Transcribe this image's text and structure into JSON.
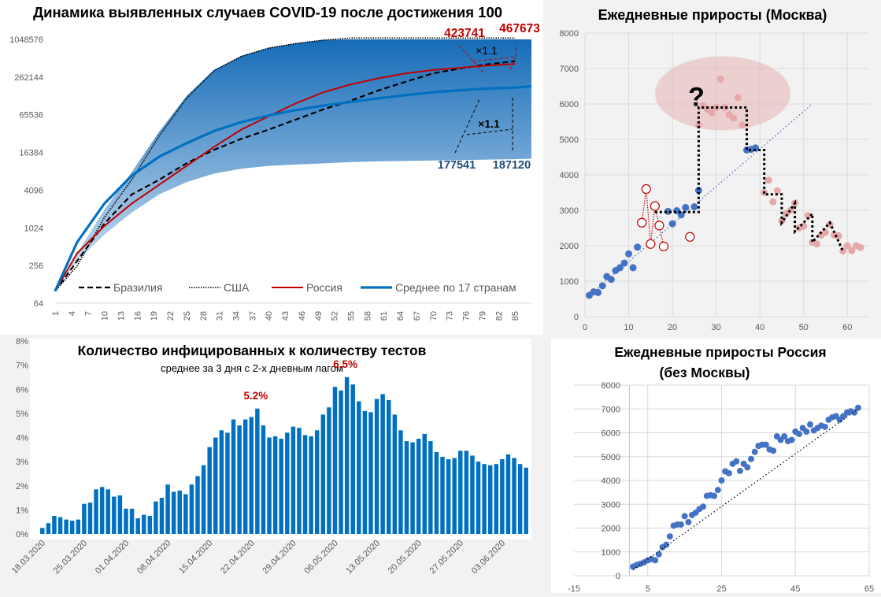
{
  "chart_data": [
    {
      "id": "growth",
      "type": "area",
      "title": "Динамика выявленных случаев COVID-19 после достижения 100",
      "xlabel": "",
      "ylabel": "",
      "yscale": "log2",
      "ylim": [
        64,
        1048576
      ],
      "yticks": [
        "64",
        "256",
        "1024",
        "4096",
        "16384",
        "65536",
        "262144",
        "1048576"
      ],
      "ytick_values": [
        64,
        256,
        1024,
        4096,
        16384,
        65536,
        262144,
        1048576
      ],
      "xticks": [
        "1",
        "4",
        "7",
        "10",
        "13",
        "16",
        "19",
        "22",
        "25",
        "28",
        "31",
        "34",
        "37",
        "40",
        "43",
        "46",
        "49",
        "52",
        "55",
        "58",
        "61",
        "64",
        "67",
        "70",
        "73",
        "76",
        "79",
        "82",
        "85"
      ],
      "xlim": [
        1,
        88
      ],
      "legend": "bottom",
      "series": [
        {
          "name": "Бразилия",
          "color": "#000000",
          "style": "dashed",
          "x": [
            1,
            5,
            10,
            15,
            20,
            25,
            30,
            35,
            40,
            45,
            50,
            55,
            60,
            65,
            70,
            75,
            80,
            85
          ],
          "y": [
            100,
            300,
            1200,
            3500,
            6000,
            11000,
            18000,
            27000,
            38000,
            55000,
            80000,
            110000,
            160000,
            220000,
            300000,
            360000,
            420000,
            470000
          ]
        },
        {
          "name": "США",
          "color": "#000000",
          "style": "dotted",
          "x": [
            1,
            5,
            10,
            15,
            20,
            25,
            30,
            35,
            40,
            45,
            50,
            55,
            60,
            65,
            70,
            75,
            80,
            85
          ],
          "y": [
            100,
            250,
            1500,
            6000,
            30000,
            120000,
            330000,
            560000,
            760000,
            900000,
            1020000,
            1140000,
            1260000,
            1370000,
            1480000,
            1590000,
            1700000,
            1800000
          ]
        },
        {
          "name": "Россия",
          "color": "#c00000",
          "style": "solid",
          "x": [
            1,
            5,
            10,
            15,
            20,
            25,
            30,
            35,
            40,
            45,
            50,
            55,
            60,
            65,
            70,
            75,
            80,
            85
          ],
          "y": [
            100,
            400,
            1100,
            2500,
            5000,
            10000,
            20000,
            38000,
            62000,
            100000,
            150000,
            200000,
            250000,
            300000,
            340000,
            370000,
            400000,
            423741
          ]
        },
        {
          "name": "Среднее по 17 странам",
          "color": "#0070c0",
          "style": "solid-thick",
          "x": [
            1,
            5,
            10,
            15,
            20,
            25,
            30,
            35,
            40,
            45,
            50,
            55,
            60,
            65,
            70,
            75,
            80,
            85,
            88
          ],
          "y": [
            100,
            600,
            2500,
            7000,
            14000,
            23000,
            36000,
            50000,
            64000,
            78000,
            92000,
            105000,
            120000,
            135000,
            150000,
            162000,
            172000,
            177541,
            187120
          ]
        }
      ],
      "band": {
        "x": [
          1,
          5,
          10,
          15,
          20,
          25,
          30,
          35,
          40,
          45,
          50,
          55,
          60,
          65,
          70,
          75,
          80,
          85,
          88
        ],
        "upper": [
          100,
          400,
          2000,
          8000,
          35000,
          130000,
          340000,
          570000,
          770000,
          910000,
          1030000,
          1150000,
          1270000,
          1380000,
          1490000,
          1600000,
          1710000,
          1810000,
          1900000
        ],
        "lower": [
          100,
          300,
          800,
          1800,
          3500,
          5500,
          7500,
          9000,
          10000,
          10500,
          11000,
          11500,
          11800,
          12000,
          12200,
          12400,
          12600,
          12800,
          13000
        ]
      },
      "annotations": [
        {
          "text": "423741",
          "color": "#c00000"
        },
        {
          "text": "467673",
          "color": "#c00000"
        },
        {
          "text": "×1.1",
          "color": "#000000"
        },
        {
          "text": "×1.1",
          "color": "#000000"
        },
        {
          "text": "177541",
          "color": "#1f4e79"
        },
        {
          "text": "187120",
          "color": "#1f4e79"
        }
      ]
    },
    {
      "id": "moscow",
      "type": "scatter",
      "title": "Ежедневные приросты (Москва)",
      "xlim": [
        0,
        65
      ],
      "ylim": [
        0,
        8000
      ],
      "xticks": [
        "0",
        "10",
        "20",
        "30",
        "40",
        "50",
        "60"
      ],
      "xtick_values": [
        0,
        10,
        20,
        30,
        40,
        50,
        60
      ],
      "yticks": [
        "0",
        "1000",
        "2000",
        "3000",
        "4000",
        "5000",
        "6000",
        "7000",
        "8000"
      ],
      "ytick_values": [
        0,
        1000,
        2000,
        3000,
        4000,
        5000,
        6000,
        7000,
        8000
      ],
      "grid": true,
      "annotation": "?",
      "series": [
        {
          "name": "blue",
          "color": "#4472c4",
          "points": [
            [
              1,
              600
            ],
            [
              2,
              700
            ],
            [
              3,
              680
            ],
            [
              4,
              870
            ],
            [
              5,
              1130
            ],
            [
              6,
              1050
            ],
            [
              7,
              1300
            ],
            [
              8,
              1380
            ],
            [
              9,
              1510
            ],
            [
              10,
              1770
            ],
            [
              11,
              1380
            ],
            [
              12,
              1960
            ],
            [
              19,
              2970
            ],
            [
              20,
              2620
            ],
            [
              21,
              2990
            ],
            [
              22,
              2870
            ],
            [
              23,
              3080
            ],
            [
              25,
              3100
            ],
            [
              26,
              3560
            ],
            [
              37,
              4700
            ],
            [
              38,
              4720
            ],
            [
              39,
              4760
            ]
          ]
        },
        {
          "name": "red-hollow",
          "color": "#c00000",
          "points": [
            [
              13,
              2650
            ],
            [
              14,
              3600
            ],
            [
              15,
              2050
            ],
            [
              16,
              3120
            ],
            [
              17,
              2570
            ],
            [
              18,
              1980
            ],
            [
              24,
              2250
            ]
          ]
        },
        {
          "name": "pink",
          "color": "#e6a8a8",
          "points": [
            [
              26,
              5400
            ],
            [
              27,
              5950
            ],
            [
              28,
              5850
            ],
            [
              29,
              5750
            ],
            [
              30,
              5900
            ],
            [
              31,
              6700
            ],
            [
              32,
              5900
            ],
            [
              33,
              5700
            ],
            [
              34,
              5600
            ],
            [
              35,
              6180
            ],
            [
              36,
              5400
            ],
            [
              41,
              3500
            ],
            [
              42,
              3850
            ],
            [
              43,
              3240
            ],
            [
              44,
              3550
            ],
            [
              45,
              2700
            ],
            [
              46,
              2900
            ],
            [
              47,
              3000
            ],
            [
              48,
              3200
            ],
            [
              49,
              2500
            ],
            [
              50,
              2550
            ],
            [
              51,
              2850
            ],
            [
              52,
              2100
            ],
            [
              53,
              2050
            ],
            [
              54,
              2300
            ],
            [
              55,
              2380
            ],
            [
              56,
              2600
            ],
            [
              57,
              2300
            ],
            [
              58,
              2280
            ],
            [
              59,
              1850
            ],
            [
              60,
              2000
            ],
            [
              61,
              1860
            ],
            [
              62,
              2000
            ],
            [
              63,
              1950
            ]
          ]
        }
      ],
      "trendline": {
        "x": [
          1,
          52
        ],
        "y": [
          600,
          6000
        ]
      },
      "red_connector_order": [
        [
          13,
          2650
        ],
        [
          14,
          3600
        ],
        [
          15,
          2050
        ],
        [
          16,
          3120
        ],
        [
          17,
          2570
        ],
        [
          18,
          1980
        ]
      ],
      "step_line": [
        [
          16,
          2950
        ],
        [
          26,
          2950
        ],
        [
          26,
          5900
        ],
        [
          37,
          5900
        ],
        [
          37,
          4700
        ],
        [
          41,
          4700
        ],
        [
          41,
          3450
        ],
        [
          45,
          3450
        ],
        [
          45,
          2650
        ],
        [
          48,
          3200
        ],
        [
          48,
          2400
        ],
        [
          52,
          2900
        ],
        [
          52,
          2100
        ],
        [
          56,
          2650
        ],
        [
          59,
          1850
        ]
      ]
    },
    {
      "id": "positivity",
      "type": "bar",
      "title": "Количество инфицированных к количеству тестов",
      "subtitle": "среднее за 3 дня с 2-х дневным лагом",
      "ylim": [
        0,
        8
      ],
      "yticks": [
        "0%",
        "1%",
        "2%",
        "3%",
        "4%",
        "5%",
        "6%",
        "7%",
        "8%"
      ],
      "ytick_values": [
        0,
        1,
        2,
        3,
        4,
        5,
        6,
        7,
        8
      ],
      "date_labels": [
        "18.03.2020",
        "25.03.2020",
        "01.04.2020",
        "08.04.2020",
        "15.04.2020",
        "22.04.2020",
        "29.04.2020",
        "06.05.2020",
        "13.05.2020",
        "20.05.2020",
        "27.05.2020",
        "03.06.2020"
      ],
      "values": [
        0.25,
        0.45,
        0.75,
        0.7,
        0.6,
        0.55,
        0.6,
        1.25,
        1.3,
        1.85,
        1.95,
        1.85,
        1.55,
        1.6,
        1.05,
        1.05,
        0.65,
        0.8,
        0.75,
        1.35,
        1.5,
        2.05,
        1.75,
        1.8,
        1.65,
        2.05,
        2.4,
        2.85,
        3.6,
        4.0,
        4.3,
        4.2,
        4.75,
        4.5,
        4.75,
        4.85,
        5.2,
        4.5,
        4.0,
        4.05,
        3.95,
        4.2,
        4.45,
        4.4,
        4.1,
        4.05,
        4.3,
        4.95,
        5.25,
        6.1,
        5.95,
        6.5,
        6.2,
        5.5,
        5.1,
        5.05,
        5.6,
        5.8,
        5.55,
        4.95,
        4.3,
        3.85,
        3.8,
        3.95,
        4.15,
        3.85,
        3.4,
        3.2,
        3.1,
        3.15,
        3.45,
        3.45,
        3.25,
        3.0,
        2.9,
        2.85,
        2.9,
        3.1,
        3.3,
        3.15,
        2.9,
        2.75
      ],
      "color": "#0070c0",
      "annotations": [
        {
          "text": "5.2%",
          "index": 36,
          "color": "#c00000"
        },
        {
          "text": "6.5%",
          "index": 51,
          "color": "#c00000"
        }
      ]
    },
    {
      "id": "russia",
      "type": "scatter",
      "title": "Ежедневные приросты Россия",
      "title2": "(без Москвы)",
      "xlim": [
        -15,
        65
      ],
      "ylim": [
        0,
        8000
      ],
      "xticks": [
        "-15",
        "5",
        "25",
        "45",
        "65"
      ],
      "xtick_values": [
        -15,
        5,
        25,
        45,
        65
      ],
      "yticks": [
        "0",
        "1000",
        "2000",
        "3000",
        "4000",
        "5000",
        "6000",
        "7000",
        "8000"
      ],
      "ytick_values": [
        0,
        1000,
        2000,
        3000,
        4000,
        5000,
        6000,
        7000,
        8000
      ],
      "grid": true,
      "color": "#4472c4",
      "points": [
        [
          1,
          380
        ],
        [
          2,
          450
        ],
        [
          3,
          500
        ],
        [
          4,
          560
        ],
        [
          5,
          650
        ],
        [
          6,
          700
        ],
        [
          7,
          650
        ],
        [
          8,
          900
        ],
        [
          9,
          1200
        ],
        [
          10,
          1300
        ],
        [
          11,
          1650
        ],
        [
          12,
          2100
        ],
        [
          13,
          2150
        ],
        [
          14,
          2150
        ],
        [
          15,
          2500
        ],
        [
          16,
          2250
        ],
        [
          17,
          2550
        ],
        [
          18,
          2650
        ],
        [
          19,
          2800
        ],
        [
          20,
          2900
        ],
        [
          21,
          3350
        ],
        [
          22,
          3380
        ],
        [
          23,
          3350
        ],
        [
          24,
          3600
        ],
        [
          25,
          4000
        ],
        [
          26,
          4380
        ],
        [
          27,
          4300
        ],
        [
          28,
          4700
        ],
        [
          29,
          4800
        ],
        [
          30,
          4400
        ],
        [
          31,
          4700
        ],
        [
          32,
          4550
        ],
        [
          33,
          4900
        ],
        [
          34,
          5200
        ],
        [
          35,
          5450
        ],
        [
          36,
          5500
        ],
        [
          37,
          5500
        ],
        [
          38,
          5300
        ],
        [
          39,
          5250
        ],
        [
          40,
          5850
        ],
        [
          41,
          5700
        ],
        [
          42,
          5850
        ],
        [
          43,
          5650
        ],
        [
          44,
          5700
        ],
        [
          45,
          6050
        ],
        [
          46,
          5950
        ],
        [
          47,
          6200
        ],
        [
          48,
          6050
        ],
        [
          49,
          6350
        ],
        [
          50,
          6100
        ],
        [
          51,
          6200
        ],
        [
          52,
          6300
        ],
        [
          53,
          6250
        ],
        [
          54,
          6550
        ],
        [
          55,
          6650
        ],
        [
          56,
          6700
        ],
        [
          57,
          6550
        ],
        [
          58,
          6700
        ],
        [
          59,
          6850
        ],
        [
          60,
          6900
        ],
        [
          61,
          6850
        ],
        [
          62,
          7050
        ]
      ],
      "trendline": {
        "x": [
          1,
          62
        ],
        "y": [
          250,
          7000
        ]
      }
    }
  ]
}
